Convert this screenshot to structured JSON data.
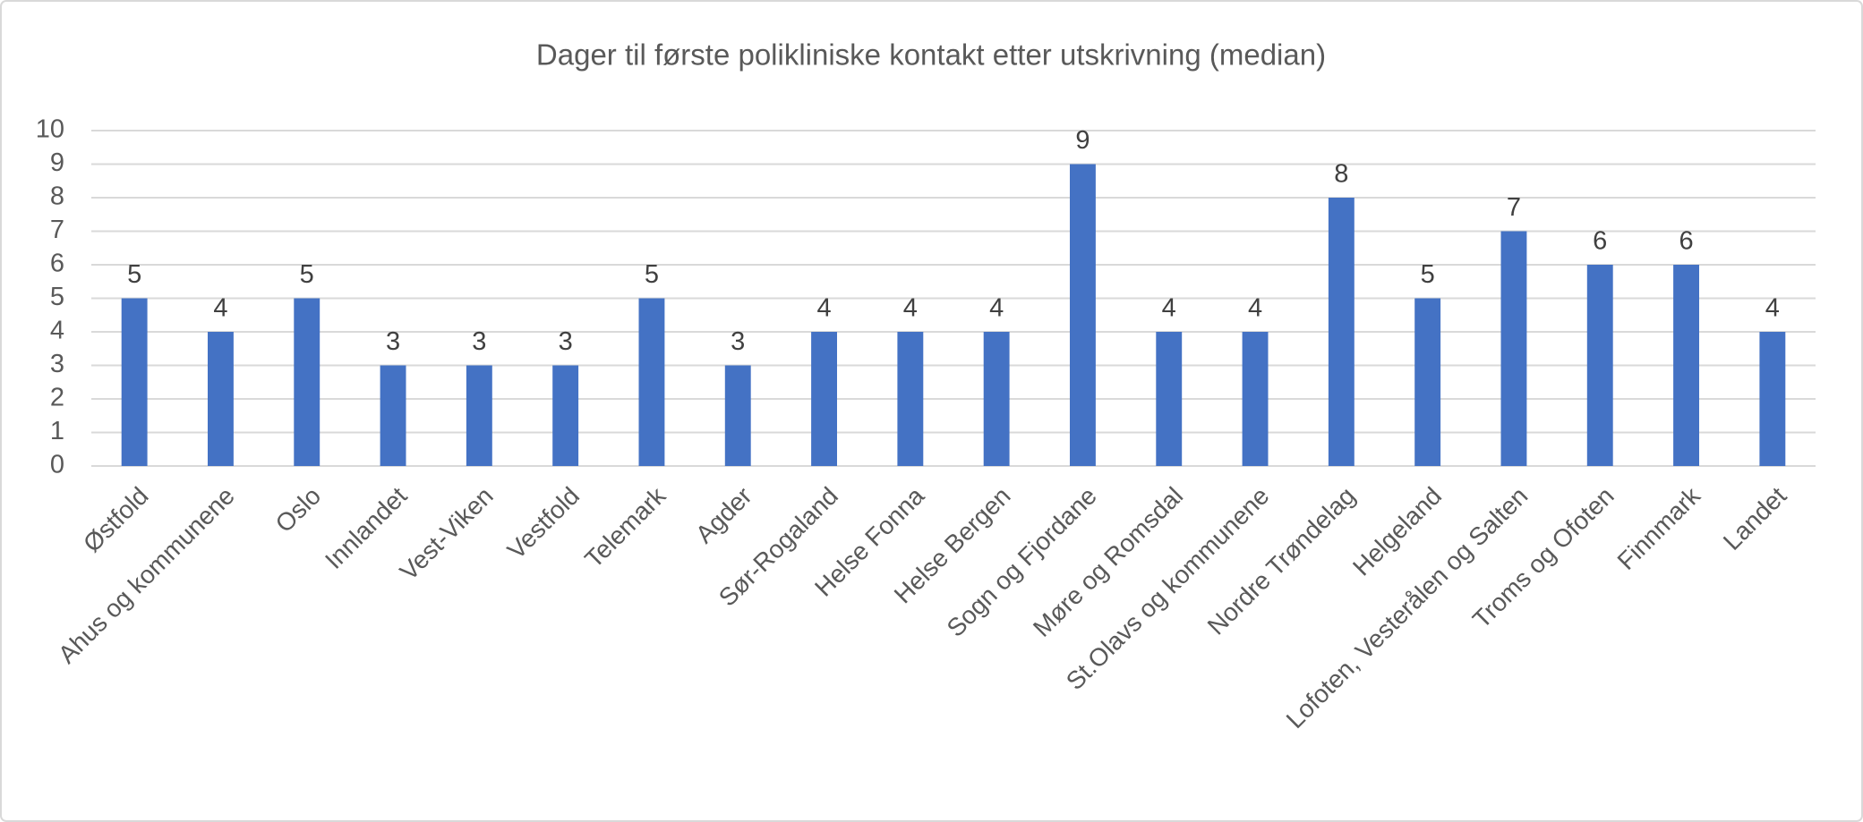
{
  "chart_data": {
    "type": "bar",
    "title": "Dager til første polikliniske kontakt etter utskrivning (median)",
    "categories": [
      "Østfold",
      "Ahus og kommunene",
      "Oslo",
      "Innlandet",
      "Vest-Viken",
      "Vestfold",
      "Telemark",
      "Agder",
      "Sør-Rogaland",
      "Helse Fonna",
      "Helse Bergen",
      "Sogn og Fjordane",
      "Møre og Romsdal",
      "St.Olavs og kommunene",
      "Nordre Trøndelag",
      "Helgeland",
      "Lofoten, Vesterålen og Salten",
      "Troms og Ofoten",
      "Finnmark",
      "Landet"
    ],
    "values": [
      5,
      4,
      5,
      3,
      3,
      3,
      5,
      3,
      4,
      4,
      4,
      9,
      4,
      4,
      8,
      5,
      7,
      6,
      6,
      4
    ],
    "color": "#4472c4",
    "ylim": [
      0,
      10
    ],
    "yticks": [
      0,
      1,
      2,
      3,
      4,
      5,
      6,
      7,
      8,
      9,
      10
    ],
    "grid": true
  }
}
